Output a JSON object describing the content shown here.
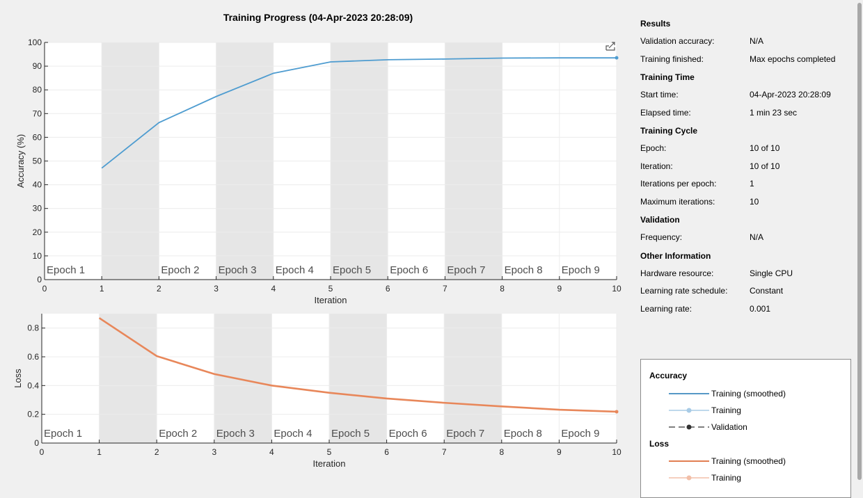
{
  "title": "Training Progress (04-Apr-2023 20:28:09)",
  "chart_data": [
    {
      "type": "line",
      "title": "Training Progress (04-Apr-2023 20:28:09)",
      "xlabel": "Iteration",
      "ylabel": "Accuracy (%)",
      "xlim": [
        0,
        10
      ],
      "ylim": [
        0,
        100
      ],
      "xticks": [
        0,
        1,
        2,
        3,
        4,
        5,
        6,
        7,
        8,
        9,
        10
      ],
      "yticks": [
        0,
        10,
        20,
        30,
        40,
        50,
        60,
        70,
        80,
        90,
        100
      ],
      "grid": true,
      "epoch_labels": [
        "Epoch 1",
        "Epoch 2",
        "Epoch 3",
        "Epoch 4",
        "Epoch 5",
        "Epoch 6",
        "Epoch 7",
        "Epoch 8",
        "Epoch 9"
      ],
      "series": [
        {
          "name": "Training (smoothed)",
          "color": "#4e9cd0",
          "x": [
            1,
            2,
            3,
            4,
            5,
            6,
            7,
            8,
            9,
            10
          ],
          "values": [
            47,
            66.2,
            77.2,
            87,
            91.8,
            92.7,
            93,
            93.4,
            93.5,
            93.5
          ]
        }
      ]
    },
    {
      "type": "line",
      "xlabel": "Iteration",
      "ylabel": "Loss",
      "xlim": [
        0,
        10
      ],
      "ylim": [
        0,
        0.9
      ],
      "xticks": [
        0,
        1,
        2,
        3,
        4,
        5,
        6,
        7,
        8,
        9,
        10
      ],
      "yticks": [
        0,
        0.2,
        0.4,
        0.6,
        0.8
      ],
      "grid": true,
      "epoch_labels": [
        "Epoch 1",
        "Epoch 2",
        "Epoch 3",
        "Epoch 4",
        "Epoch 5",
        "Epoch 6",
        "Epoch 7",
        "Epoch 8",
        "Epoch 9"
      ],
      "series": [
        {
          "name": "Training (smoothed)",
          "color": "#e8875a",
          "x": [
            1,
            2,
            3,
            4,
            5,
            6,
            7,
            8,
            9,
            10
          ],
          "values": [
            0.87,
            0.605,
            0.48,
            0.4,
            0.35,
            0.31,
            0.28,
            0.255,
            0.232,
            0.218
          ]
        }
      ]
    }
  ],
  "info": {
    "results": {
      "title": "Results",
      "rows": [
        {
          "k": "Validation accuracy:",
          "v": "N/A"
        },
        {
          "k": "Training finished:",
          "v": "Max epochs completed"
        }
      ]
    },
    "time": {
      "title": "Training Time",
      "rows": [
        {
          "k": "Start time:",
          "v": "04-Apr-2023 20:28:09"
        },
        {
          "k": "Elapsed time:",
          "v": "1 min 23 sec"
        }
      ]
    },
    "cycle": {
      "title": "Training Cycle",
      "rows": [
        {
          "k": "Epoch:",
          "v": "10 of 10"
        },
        {
          "k": "Iteration:",
          "v": "10 of 10"
        },
        {
          "k": "Iterations per epoch:",
          "v": "1"
        },
        {
          "k": "Maximum iterations:",
          "v": "10"
        }
      ]
    },
    "validation": {
      "title": "Validation",
      "rows": [
        {
          "k": "Frequency:",
          "v": "N/A"
        }
      ]
    },
    "other": {
      "title": "Other Information",
      "rows": [
        {
          "k": "Hardware resource:",
          "v": "Single CPU"
        },
        {
          "k": "Learning rate schedule:",
          "v": "Constant"
        },
        {
          "k": "Learning rate:",
          "v": "0.001"
        }
      ]
    }
  },
  "legend": {
    "accuracy_title": "Accuracy",
    "acc_smoothed": "Training (smoothed)",
    "acc_training": "Training",
    "acc_validation": "Validation",
    "loss_title": "Loss",
    "loss_smoothed": "Training (smoothed)",
    "loss_training": "Training"
  },
  "colors": {
    "acc_line": "#4e9cd0",
    "acc_raw": "#a8cbe6",
    "loss_line": "#e8875a",
    "loss_raw": "#f2bfa8",
    "epoch_shade": "#e6e6e6"
  },
  "icons": {
    "export": "export-icon"
  }
}
